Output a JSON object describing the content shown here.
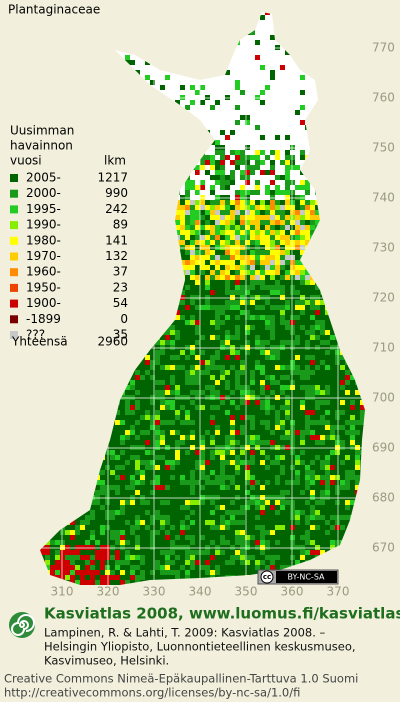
{
  "title": "Plantaginaceae",
  "legend": {
    "heading": [
      "Uusimman",
      "havainnon",
      "vuosi"
    ],
    "count_heading": "lkm",
    "rows": [
      {
        "label": "2005-",
        "count": 1217,
        "color": "#006400"
      },
      {
        "label": "2000-",
        "count": 990,
        "color": "#1a9a1a"
      },
      {
        "label": "1995-",
        "count": 242,
        "color": "#22cc22"
      },
      {
        "label": "1990-",
        "count": 89,
        "color": "#88ee00"
      },
      {
        "label": "1980-",
        "count": 141,
        "color": "#ffff00"
      },
      {
        "label": "1970-",
        "count": 132,
        "color": "#ffcc00"
      },
      {
        "label": "1960-",
        "count": 37,
        "color": "#ff8c00"
      },
      {
        "label": "1950-",
        "count": 23,
        "color": "#ee4400"
      },
      {
        "label": "1900-",
        "count": 54,
        "color": "#cc0000"
      },
      {
        "label": "-1899",
        "count": 0,
        "color": "#7a0000"
      },
      {
        "label": "???",
        "count": 35,
        "color": "#c8c8c8"
      }
    ],
    "total": {
      "label": "Yhteensä",
      "count": 2960
    }
  },
  "axes": {
    "northing": [
      770,
      760,
      750,
      740,
      730,
      720,
      710,
      700,
      690,
      680,
      670
    ],
    "easting": [
      310,
      320,
      330,
      340,
      350,
      360,
      370
    ]
  },
  "license_badge": {
    "icon": "cc",
    "text": "BY-NC-SA"
  },
  "footer": {
    "headline": "Kasviatlas 2008, www.luomus.fi/kasviatlas",
    "citation": [
      "Lampinen, R. & Lahti, T. 2009: Kasviatlas 2008. –",
      "Helsingin Yliopisto, Luonnontieteellinen keskusmuseo,",
      "Kasvimuseo, Helsinki."
    ],
    "license": [
      "Creative Commons Nimeä-Epäkaupallinen-Tarttuva 1.0 Suomi",
      "http://creativecommons.org/licenses/by-nc-sa/1.0/fi"
    ]
  }
}
